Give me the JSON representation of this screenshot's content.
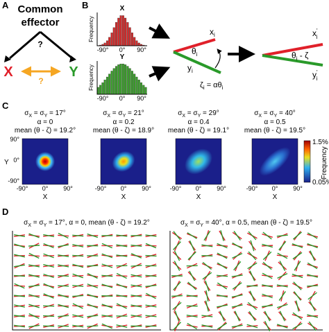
{
  "panels": {
    "a": {
      "label": "A",
      "title_line1": "Common",
      "title_line2": "effector",
      "question_top": "?",
      "x": "X",
      "y": "Y",
      "question_mid": "?"
    },
    "b": {
      "label": "B",
      "hist_x": {
        "title": "X",
        "ylabel": "Frequency",
        "ticks": [
          "-90°",
          "0°",
          "90°"
        ]
      },
      "hist_y": {
        "title": "Y",
        "ylabel": "Frequency",
        "ticks": [
          "-90°",
          "0°",
          "90°"
        ]
      },
      "x_i": {
        "base": "x",
        "sub": "i"
      },
      "theta_i": {
        "base": "θ",
        "sub": "i"
      },
      "y_i": {
        "base": "y",
        "sub": "i"
      },
      "zeta_i": [
        "ζ",
        "i",
        " = αθ",
        "i"
      ],
      "x_prime": {
        "base": "x",
        "sup": "'",
        "sub": "i"
      },
      "diff": [
        "θ",
        "i",
        " - ζ"
      ],
      "y_prime": {
        "base": "y",
        "sup": "'",
        "sub": "i"
      }
    },
    "c": {
      "label": "C",
      "maps": [
        {
          "sigma_parts": [
            "σ",
            "X",
            " = σ",
            "Y",
            " = 17°"
          ],
          "alpha": "α = 0",
          "mean": "mean (θ - ζ) = 19.2°"
        },
        {
          "sigma_parts": [
            "σ",
            "X",
            " = σ",
            "Y",
            " = 21°"
          ],
          "alpha": "α = 0.2",
          "mean": "mean (θ - ζ) = 18.9°"
        },
        {
          "sigma_parts": [
            "σ",
            "X",
            " = σ",
            "Y",
            " = 29°"
          ],
          "alpha": "α = 0.4",
          "mean": "mean (θ - ζ) = 19.1°"
        },
        {
          "sigma_parts": [
            "σ",
            "X",
            " = σ",
            "Y",
            " = 40°"
          ],
          "alpha": "α = 0.5",
          "mean": "mean (θ - ζ) = 19.5°"
        }
      ],
      "xticks": [
        "-90°",
        "0°",
        "90°"
      ],
      "yticks": [
        "90°",
        "0°",
        "-90°"
      ],
      "xlabel": "X",
      "ylabel": "Y",
      "colorbar": {
        "max": "1.5%",
        "min": "0.05%",
        "label": "Frequency"
      }
    },
    "d": {
      "label": "D",
      "headers": [
        [
          "σ",
          "X",
          " = σ",
          "Y",
          " = 17°, α = 0, mean (θ - ζ) = 19.2°"
        ],
        [
          "σ",
          "X",
          " = σ",
          "Y",
          " = 40°, α = 0.5, mean (θ - ζ) = 19.5°"
        ]
      ]
    }
  }
}
